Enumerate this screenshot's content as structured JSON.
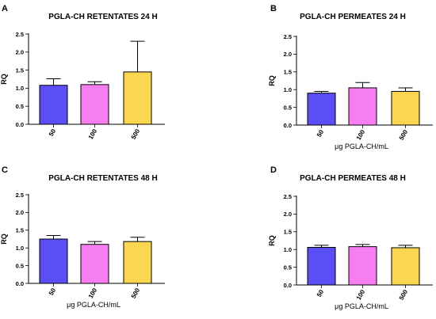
{
  "colors": {
    "blue": "#5a4ef7",
    "pink": "#f77ef0",
    "yellow": "#fbd64f",
    "axis": "#000000"
  },
  "chart_data": [
    {
      "type": "bar",
      "panel_label": "A",
      "title": "PGLA-CH RETENTATES 24 H",
      "xlabel": "",
      "ylabel": "RQ",
      "ylim": [
        0,
        2.5
      ],
      "yticks": [
        "0.0",
        "0.5",
        "1.0",
        "1.5",
        "2.0",
        "2.5"
      ],
      "categories": [
        "50",
        "100",
        "500"
      ],
      "values": [
        1.08,
        1.1,
        1.45
      ],
      "errors": [
        0.18,
        0.08,
        0.85
      ],
      "bar_colors": [
        "#5a4ef7",
        "#f77ef0",
        "#fbd64f"
      ]
    },
    {
      "type": "bar",
      "panel_label": "B",
      "title": "PGLA-CH PERMEATES 24 H",
      "xlabel": "μg PGLA-CH/mL",
      "ylabel": "RQ",
      "ylim": [
        0,
        2.5
      ],
      "yticks": [
        "0.0",
        "0.5",
        "1.0",
        "1.5",
        "2.0",
        "2.5"
      ],
      "categories": [
        "50",
        "100",
        "500"
      ],
      "values": [
        0.9,
        1.05,
        0.95
      ],
      "errors": [
        0.05,
        0.15,
        0.1
      ],
      "bar_colors": [
        "#5a4ef7",
        "#f77ef0",
        "#fbd64f"
      ]
    },
    {
      "type": "bar",
      "panel_label": "C",
      "title": "PGLA-CH RETENTATES 48 H",
      "xlabel": "μg PGLA-CH/mL",
      "ylabel": "RQ",
      "ylim": [
        0,
        2.5
      ],
      "yticks": [
        "0.0",
        "0.5",
        "1.0",
        "1.5",
        "2.0",
        "2.5"
      ],
      "categories": [
        "50",
        "100",
        "500"
      ],
      "values": [
        1.25,
        1.1,
        1.18
      ],
      "errors": [
        0.1,
        0.08,
        0.12
      ],
      "bar_colors": [
        "#5a4ef7",
        "#f77ef0",
        "#fbd64f"
      ]
    },
    {
      "type": "bar",
      "panel_label": "D",
      "title": "PGLA-CH PERMEATES 48 H",
      "xlabel": "μg PGLA-CH/mL",
      "ylabel": "RQ",
      "ylim": [
        0,
        2.5
      ],
      "yticks": [
        "0.0",
        "0.5",
        "1.0",
        "1.5",
        "2.0",
        "2.5"
      ],
      "categories": [
        "50",
        "100",
        "500"
      ],
      "values": [
        1.06,
        1.08,
        1.05
      ],
      "errors": [
        0.06,
        0.06,
        0.07
      ],
      "bar_colors": [
        "#5a4ef7",
        "#f77ef0",
        "#fbd64f"
      ]
    }
  ]
}
